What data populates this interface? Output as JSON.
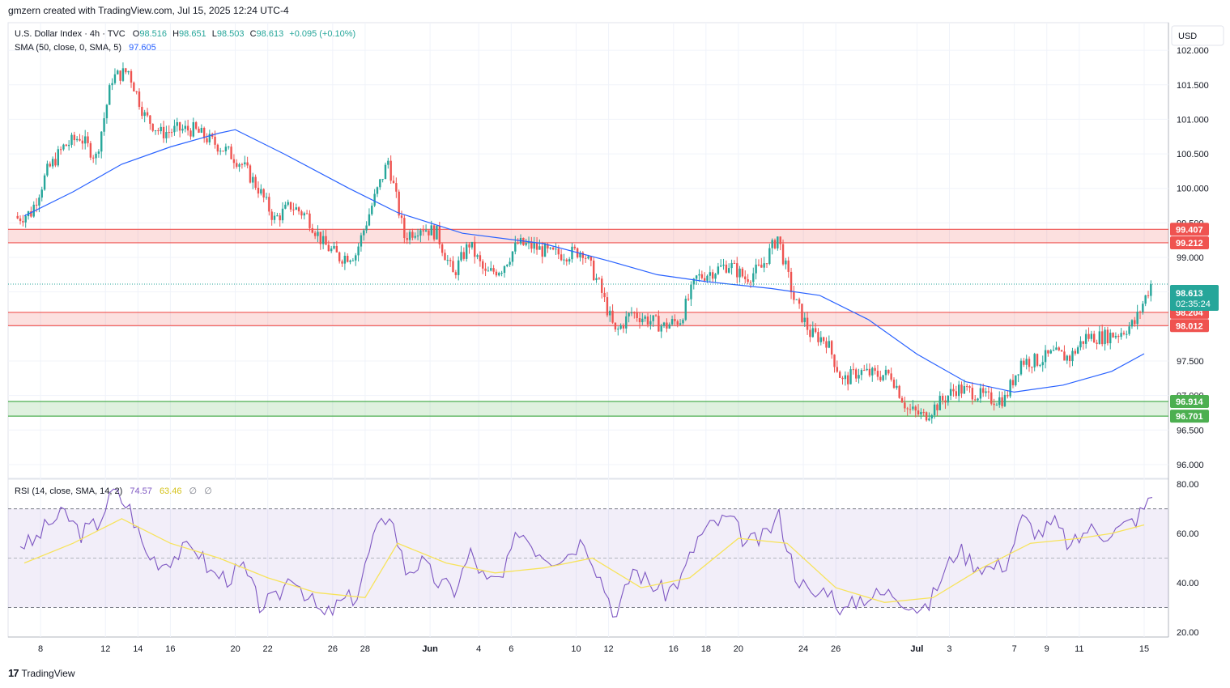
{
  "header": {
    "attribution": "gmzern created with TradingView.com, Jul 15, 2025 12:24 UTC-4",
    "currency": "USD"
  },
  "legend": {
    "symbol": "U.S. Dollar Index · 4h · TVC",
    "o_label": "O",
    "o_value": "98.516",
    "h_label": "H",
    "h_value": "98.651",
    "l_label": "L",
    "l_value": "98.503",
    "c_label": "C",
    "c_value": "98.613",
    "change": "+0.095 (+0.10%)",
    "sma_label": "SMA (50, close, 0, SMA, 5)",
    "sma_value": "97.605",
    "rsi_label": "RSI (14, close, SMA, 14, 2)",
    "rsi_value": "74.57",
    "rsi_sma_value": "63.46",
    "rsi_extra1": "∅",
    "rsi_extra2": "∅"
  },
  "price_badge": {
    "price": "98.613",
    "countdown": "02:35:24"
  },
  "colors": {
    "up": "#26a69a",
    "down": "#ef5350",
    "sma": "#2962ff",
    "resistance": "#ef5350",
    "support": "#4caf50",
    "rsi_line": "#7e57c2",
    "rsi_sma": "#f7e35b",
    "badge_current": "#26a69a"
  },
  "footer": {
    "brand": "TradingView"
  },
  "chart_data": {
    "type": "line",
    "title": "U.S. Dollar Index · 4h · TVC",
    "price_axis_ticks": [
      "102.000",
      "101.500",
      "101.000",
      "100.500",
      "100.000",
      "99.500",
      "99.000",
      "98.500",
      "98.000",
      "97.500",
      "97.000",
      "96.500",
      "96.000"
    ],
    "price_range": [
      95.8,
      102.4
    ],
    "x_ticks": [
      "8",
      "12",
      "14",
      "16",
      "20",
      "22",
      "26",
      "28",
      "Jun",
      "4",
      "6",
      "10",
      "12",
      "16",
      "18",
      "20",
      "24",
      "26",
      "Jul",
      "3",
      "7",
      "9",
      "11",
      "15"
    ],
    "zones": [
      {
        "name": "resistance-zone-upper",
        "top": 99.407,
        "bottom": 99.212,
        "top_label": "99.407",
        "bottom_label": "99.212"
      },
      {
        "name": "resistance-zone-lower",
        "top": 98.204,
        "bottom": 98.012,
        "top_label": "98.204",
        "bottom_label": "98.012"
      },
      {
        "name": "support-zone",
        "top": 96.914,
        "bottom": 96.701,
        "top_label": "96.914",
        "bottom_label": "96.701"
      }
    ],
    "close_series": [
      {
        "date": "May 7",
        "close": 99.65
      },
      {
        "date": "May 8",
        "close": 100.25
      },
      {
        "date": "May 9",
        "close": 100.6
      },
      {
        "date": "May 10",
        "close": 100.75
      },
      {
        "date": "May 11",
        "close": 100.45
      },
      {
        "date": "May 12",
        "close": 101.6
      },
      {
        "date": "May 13",
        "close": 101.7
      },
      {
        "date": "May 14",
        "close": 101.05
      },
      {
        "date": "May 15",
        "close": 100.8
      },
      {
        "date": "May 16",
        "close": 100.85
      },
      {
        "date": "May 17",
        "close": 100.85
      },
      {
        "date": "May 18",
        "close": 100.7
      },
      {
        "date": "May 19",
        "close": 100.55
      },
      {
        "date": "May 20",
        "close": 100.35
      },
      {
        "date": "May 21",
        "close": 100.0
      },
      {
        "date": "May 22",
        "close": 99.55
      },
      {
        "date": "May 23",
        "close": 99.75
      },
      {
        "date": "May 24",
        "close": 99.6
      },
      {
        "date": "May 25",
        "close": 99.2
      },
      {
        "date": "May 26",
        "close": 99.0
      },
      {
        "date": "May 27",
        "close": 99.05
      },
      {
        "date": "May 28",
        "close": 99.75
      },
      {
        "date": "May 29",
        "close": 100.4
      },
      {
        "date": "May 30",
        "close": 99.3
      },
      {
        "date": "May 31",
        "close": 99.45
      },
      {
        "date": "Jun 1",
        "close": 99.35
      },
      {
        "date": "Jun 2",
        "close": 98.75
      },
      {
        "date": "Jun 3",
        "close": 99.2
      },
      {
        "date": "Jun 4",
        "close": 98.75
      },
      {
        "date": "Jun 5",
        "close": 98.85
      },
      {
        "date": "Jun 6",
        "close": 99.2
      },
      {
        "date": "Jun 7",
        "close": 99.15
      },
      {
        "date": "Jun 8",
        "close": 99.05
      },
      {
        "date": "Jun 9",
        "close": 99.05
      },
      {
        "date": "Jun 10",
        "close": 99.1
      },
      {
        "date": "Jun 11",
        "close": 98.6
      },
      {
        "date": "Jun 12",
        "close": 97.9
      },
      {
        "date": "Jun 13",
        "close": 98.2
      },
      {
        "date": "Jun 14",
        "close": 98.1
      },
      {
        "date": "Jun 15",
        "close": 98.0
      },
      {
        "date": "Jun 16",
        "close": 98.1
      },
      {
        "date": "Jun 17",
        "close": 98.7
      },
      {
        "date": "Jun 18",
        "close": 98.8
      },
      {
        "date": "Jun 19",
        "close": 98.9
      },
      {
        "date": "Jun 20",
        "close": 98.7
      },
      {
        "date": "Jun 21",
        "close": 98.85
      },
      {
        "date": "Jun 22",
        "close": 99.3
      },
      {
        "date": "Jun 23",
        "close": 98.4
      },
      {
        "date": "Jun 24",
        "close": 97.9
      },
      {
        "date": "Jun 25",
        "close": 97.8
      },
      {
        "date": "Jun 26",
        "close": 97.2
      },
      {
        "date": "Jun 27",
        "close": 97.35
      },
      {
        "date": "Jun 28",
        "close": 97.3
      },
      {
        "date": "Jun 29",
        "close": 97.3
      },
      {
        "date": "Jun 30",
        "close": 96.8
      },
      {
        "date": "Jul 1",
        "close": 96.7
      },
      {
        "date": "Jul 2",
        "close": 96.9
      },
      {
        "date": "Jul 3",
        "close": 97.1
      },
      {
        "date": "Jul 4",
        "close": 97.05
      },
      {
        "date": "Jul 5",
        "close": 96.95
      },
      {
        "date": "Jul 6",
        "close": 96.95
      },
      {
        "date": "Jul 7",
        "close": 97.5
      },
      {
        "date": "Jul 8",
        "close": 97.5
      },
      {
        "date": "Jul 9",
        "close": 97.6
      },
      {
        "date": "Jul 10",
        "close": 97.55
      },
      {
        "date": "Jul 11",
        "close": 97.85
      },
      {
        "date": "Jul 12",
        "close": 97.85
      },
      {
        "date": "Jul 13",
        "close": 97.9
      },
      {
        "date": "Jul 14",
        "close": 98.05
      },
      {
        "date": "Jul 15",
        "close": 98.613
      }
    ],
    "sma_series": [
      {
        "date": "May 7",
        "value": 99.6
      },
      {
        "date": "May 10",
        "value": 99.95
      },
      {
        "date": "May 13",
        "value": 100.35
      },
      {
        "date": "May 16",
        "value": 100.6
      },
      {
        "date": "May 19",
        "value": 100.8
      },
      {
        "date": "May 20",
        "value": 100.85
      },
      {
        "date": "May 23",
        "value": 100.5
      },
      {
        "date": "May 27",
        "value": 100.0
      },
      {
        "date": "May 30",
        "value": 99.65
      },
      {
        "date": "Jun 3",
        "value": 99.35
      },
      {
        "date": "Jun 8",
        "value": 99.2
      },
      {
        "date": "Jun 12",
        "value": 98.95
      },
      {
        "date": "Jun 15",
        "value": 98.75
      },
      {
        "date": "Jun 18",
        "value": 98.65
      },
      {
        "date": "Jun 22",
        "value": 98.55
      },
      {
        "date": "Jun 25",
        "value": 98.45
      },
      {
        "date": "Jun 28",
        "value": 98.1
      },
      {
        "date": "Jul 1",
        "value": 97.6
      },
      {
        "date": "Jul 4",
        "value": 97.2
      },
      {
        "date": "Jul 7",
        "value": 97.05
      },
      {
        "date": "Jul 10",
        "value": 97.15
      },
      {
        "date": "Jul 13",
        "value": 97.35
      },
      {
        "date": "Jul 15",
        "value": 97.605
      }
    ],
    "rsi": {
      "ticks": [
        "80.00",
        "60.00",
        "40.00",
        "20.00"
      ],
      "range": [
        18,
        82
      ],
      "upper_band": 70,
      "lower_band": 30,
      "mid_band": 50,
      "series": [
        {
          "date": "May 7",
          "value": 56
        },
        {
          "date": "May 8",
          "value": 64
        },
        {
          "date": "May 9",
          "value": 68
        },
        {
          "date": "May 10",
          "value": 60
        },
        {
          "date": "May 11",
          "value": 64
        },
        {
          "date": "May 12",
          "value": 77
        },
        {
          "date": "May 13",
          "value": 70
        },
        {
          "date": "May 14",
          "value": 52
        },
        {
          "date": "May 15",
          "value": 48
        },
        {
          "date": "May 16",
          "value": 52
        },
        {
          "date": "May 17",
          "value": 55
        },
        {
          "date": "May 18",
          "value": 44
        },
        {
          "date": "May 19",
          "value": 42
        },
        {
          "date": "May 20",
          "value": 46
        },
        {
          "date": "May 21",
          "value": 31
        },
        {
          "date": "May 22",
          "value": 33
        },
        {
          "date": "May 23",
          "value": 44
        },
        {
          "date": "May 24",
          "value": 34
        },
        {
          "date": "May 25",
          "value": 26
        },
        {
          "date": "May 26",
          "value": 32
        },
        {
          "date": "May 27",
          "value": 35
        },
        {
          "date": "May 28",
          "value": 58
        },
        {
          "date": "May 29",
          "value": 69
        },
        {
          "date": "May 30",
          "value": 45
        },
        {
          "date": "May 31",
          "value": 48
        },
        {
          "date": "Jun 1",
          "value": 40
        },
        {
          "date": "Jun 2",
          "value": 37
        },
        {
          "date": "Jun 3",
          "value": 52
        },
        {
          "date": "Jun 4",
          "value": 40
        },
        {
          "date": "Jun 5",
          "value": 42
        },
        {
          "date": "Jun 6",
          "value": 62
        },
        {
          "date": "Jun 7",
          "value": 54
        },
        {
          "date": "Jun 8",
          "value": 50
        },
        {
          "date": "Jun 9",
          "value": 52
        },
        {
          "date": "Jun 10",
          "value": 58
        },
        {
          "date": "Jun 11",
          "value": 42
        },
        {
          "date": "Jun 12",
          "value": 26
        },
        {
          "date": "Jun 13",
          "value": 46
        },
        {
          "date": "Jun 14",
          "value": 40
        },
        {
          "date": "Jun 15",
          "value": 36
        },
        {
          "date": "Jun 16",
          "value": 42
        },
        {
          "date": "Jun 17",
          "value": 58
        },
        {
          "date": "Jun 18",
          "value": 64
        },
        {
          "date": "Jun 19",
          "value": 66
        },
        {
          "date": "Jun 20",
          "value": 56
        },
        {
          "date": "Jun 21",
          "value": 58
        },
        {
          "date": "Jun 22",
          "value": 67
        },
        {
          "date": "Jun 23",
          "value": 44
        },
        {
          "date": "Jun 24",
          "value": 34
        },
        {
          "date": "Jun 25",
          "value": 38
        },
        {
          "date": "Jun 26",
          "value": 28
        },
        {
          "date": "Jun 27",
          "value": 34
        },
        {
          "date": "Jun 28",
          "value": 35
        },
        {
          "date": "Jun 29",
          "value": 36
        },
        {
          "date": "Jun 30",
          "value": 32
        },
        {
          "date": "Jul 1",
          "value": 28
        },
        {
          "date": "Jul 2",
          "value": 42
        },
        {
          "date": "Jul 3",
          "value": 54
        },
        {
          "date": "Jul 4",
          "value": 48
        },
        {
          "date": "Jul 5",
          "value": 46
        },
        {
          "date": "Jul 6",
          "value": 48
        },
        {
          "date": "Jul 7",
          "value": 66
        },
        {
          "date": "Jul 8",
          "value": 60
        },
        {
          "date": "Jul 9",
          "value": 64
        },
        {
          "date": "Jul 10",
          "value": 54
        },
        {
          "date": "Jul 11",
          "value": 62
        },
        {
          "date": "Jul 12",
          "value": 60
        },
        {
          "date": "Jul 13",
          "value": 62
        },
        {
          "date": "Jul 14",
          "value": 66
        },
        {
          "date": "Jul 15",
          "value": 74.57
        }
      ],
      "sma_series": [
        {
          "date": "May 7",
          "value": 48
        },
        {
          "date": "May 10",
          "value": 56
        },
        {
          "date": "May 13",
          "value": 66
        },
        {
          "date": "May 16",
          "value": 56
        },
        {
          "date": "May 19",
          "value": 50
        },
        {
          "date": "May 22",
          "value": 42
        },
        {
          "date": "May 25",
          "value": 36
        },
        {
          "date": "May 28",
          "value": 34
        },
        {
          "date": "May 30",
          "value": 56
        },
        {
          "date": "Jun 2",
          "value": 48
        },
        {
          "date": "Jun 5",
          "value": 44
        },
        {
          "date": "Jun 8",
          "value": 46
        },
        {
          "date": "Jun 11",
          "value": 50
        },
        {
          "date": "Jun 14",
          "value": 38
        },
        {
          "date": "Jun 17",
          "value": 42
        },
        {
          "date": "Jun 20",
          "value": 58
        },
        {
          "date": "Jun 23",
          "value": 56
        },
        {
          "date": "Jun 26",
          "value": 38
        },
        {
          "date": "Jun 29",
          "value": 32
        },
        {
          "date": "Jul 2",
          "value": 34
        },
        {
          "date": "Jul 5",
          "value": 46
        },
        {
          "date": "Jul 8",
          "value": 56
        },
        {
          "date": "Jul 11",
          "value": 58
        },
        {
          "date": "Jul 13",
          "value": 60
        },
        {
          "date": "Jul 15",
          "value": 63.46
        }
      ]
    }
  }
}
